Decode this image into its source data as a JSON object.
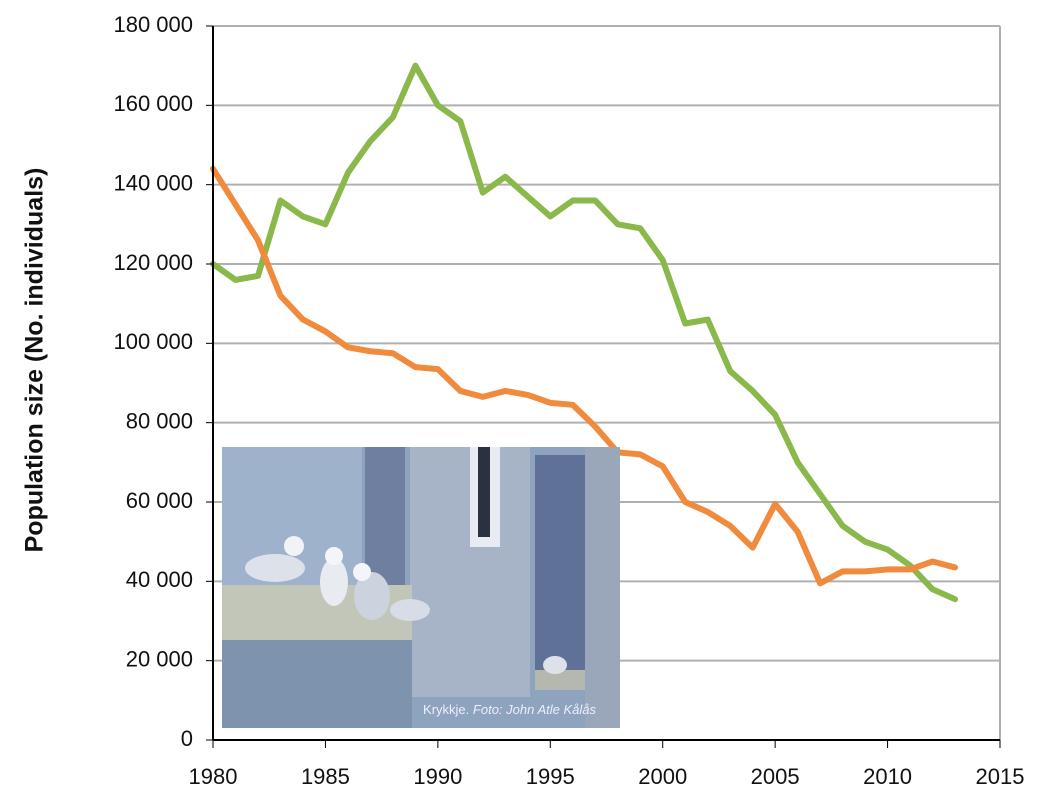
{
  "chart_data": {
    "type": "line",
    "ylabel": "Population size (No. individuals)",
    "x": [
      1980,
      1981,
      1982,
      1983,
      1984,
      1985,
      1986,
      1987,
      1988,
      1989,
      1990,
      1991,
      1992,
      1993,
      1994,
      1995,
      1996,
      1997,
      1998,
      1999,
      2000,
      2001,
      2002,
      2003,
      2004,
      2005,
      2006,
      2007,
      2008,
      2009,
      2010,
      2011,
      2012,
      2013
    ],
    "series": [
      {
        "color": "#8ab84a",
        "values": [
          120000,
          116000,
          117000,
          136000,
          132000,
          130000,
          143000,
          151000,
          157000,
          170000,
          160000,
          156000,
          138000,
          142000,
          137000,
          132000,
          136000,
          136000,
          130000,
          129000,
          121000,
          105000,
          106000,
          93000,
          88000,
          82000,
          70000,
          62000,
          54000,
          50000,
          48000,
          44000,
          38000,
          35500
        ]
      },
      {
        "color": "#f08a3c",
        "values": [
          144000,
          135000,
          126000,
          112000,
          106000,
          103000,
          99000,
          98000,
          97500,
          94000,
          93500,
          88000,
          86500,
          88000,
          87000,
          85000,
          84500,
          79000,
          72500,
          72000,
          69000,
          60000,
          57500,
          54000,
          48500,
          59500,
          52500,
          39500,
          42500,
          42500,
          43000,
          43000,
          45000,
          43500
        ]
      }
    ],
    "xlim": [
      1980,
      2015
    ],
    "xticks": [
      1980,
      1985,
      1990,
      1995,
      2000,
      2005,
      2010,
      2015
    ],
    "ylim": [
      0,
      180000
    ],
    "yticks": [
      0,
      {
        "value": 20000,
        "label": "20 000"
      },
      {
        "value": 40000,
        "label": "40 000"
      },
      {
        "value": 60000,
        "label": "60 000"
      },
      {
        "value": 80000,
        "label": "80 000"
      },
      {
        "value": 100000,
        "label": "100 000"
      },
      {
        "value": 120000,
        "label": "120 000"
      },
      {
        "value": 140000,
        "label": "140 000"
      },
      {
        "value": 160000,
        "label": "160 000"
      },
      {
        "value": 180000,
        "label": "180 000"
      }
    ],
    "grid": true
  },
  "inset": {
    "caption": "Krykkje.",
    "credit": "Foto: John Atle Kålås"
  }
}
